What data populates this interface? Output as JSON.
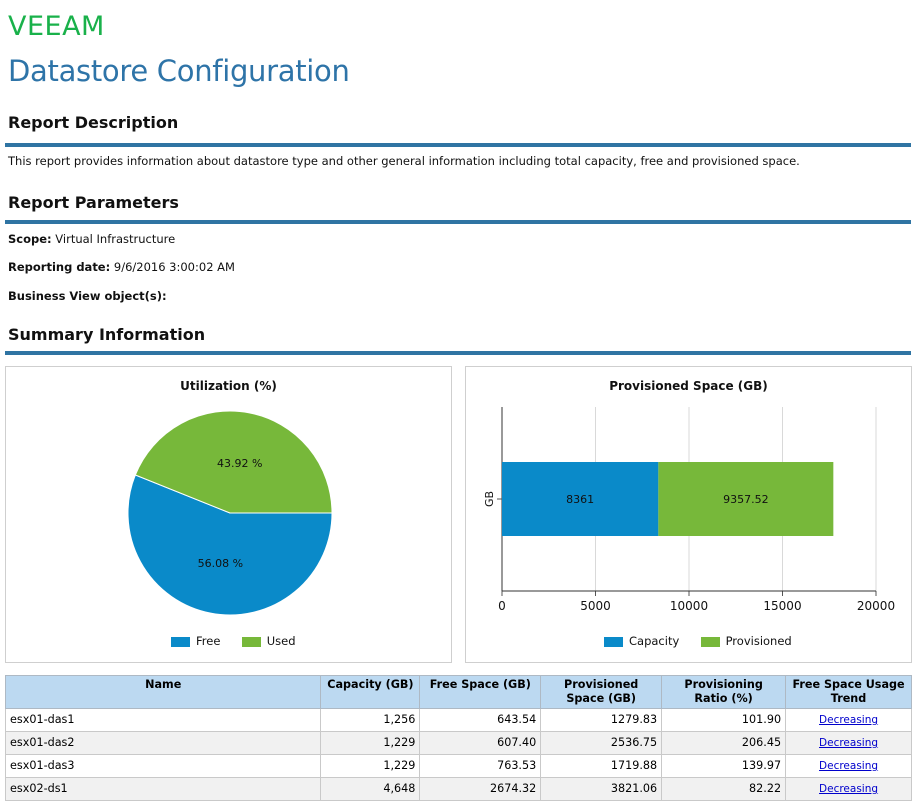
{
  "header": {
    "logo_text": "VEEAM",
    "page_title": "Datastore Configuration"
  },
  "report_description": {
    "heading": "Report Description",
    "text": "This report provides information about datastore type and other general information including total capacity, free and provisioned space."
  },
  "report_parameters": {
    "heading": "Report Parameters",
    "scope_label": "Scope:",
    "scope_value": "Virtual Infrastructure",
    "date_label": "Reporting date:",
    "date_value": "9/6/2016 3:00:02 AM",
    "bv_label": "Business View object(s):",
    "bv_value": ""
  },
  "summary": {
    "heading": "Summary Information"
  },
  "colors": {
    "accent": "#2f74a3",
    "free": "#0a8ac9",
    "used": "#77b83a",
    "header_fill": "#bcd9f1"
  },
  "chart_data": [
    {
      "type": "pie",
      "title": "Utilization (%)",
      "slices": [
        {
          "name": "Free",
          "value": 56.08,
          "label": "56.08 %"
        },
        {
          "name": "Used",
          "value": 43.92,
          "label": "43.92 %"
        }
      ],
      "legend": [
        "Free",
        "Used"
      ],
      "legend_placement": "bottom"
    },
    {
      "type": "bar",
      "orientation": "horizontal",
      "stacked": true,
      "title": "Provisioned Space (GB)",
      "categories": [
        "GB"
      ],
      "series": [
        {
          "name": "Capacity",
          "values": [
            8361
          ],
          "label": "8361"
        },
        {
          "name": "Provisioned",
          "values": [
            9357.52
          ],
          "label": "9357.52"
        }
      ],
      "xlim": [
        0,
        20000
      ],
      "xticks": [
        "0",
        "5000",
        "10000",
        "15000",
        "20000"
      ],
      "grid": true,
      "legend_placement": "bottom"
    }
  ],
  "table": {
    "columns": [
      "Name",
      "Capacity (GB)",
      "Free Space (GB)",
      "Provisioned Space (GB)",
      "Provisioning Ratio (%)",
      "Free Space Usage Trend"
    ],
    "rows": [
      {
        "name": "esx01-das1",
        "capacity": "1,256",
        "free": "643.54",
        "provisioned": "1279.83",
        "ratio": "101.90",
        "trend": "Decreasing"
      },
      {
        "name": "esx01-das2",
        "capacity": "1,229",
        "free": "607.40",
        "provisioned": "2536.75",
        "ratio": "206.45",
        "trend": "Decreasing"
      },
      {
        "name": "esx01-das3",
        "capacity": "1,229",
        "free": "763.53",
        "provisioned": "1719.88",
        "ratio": "139.97",
        "trend": "Decreasing"
      },
      {
        "name": "esx02-ds1",
        "capacity": "4,648",
        "free": "2674.32",
        "provisioned": "3821.06",
        "ratio": "82.22",
        "trend": "Decreasing"
      }
    ]
  }
}
